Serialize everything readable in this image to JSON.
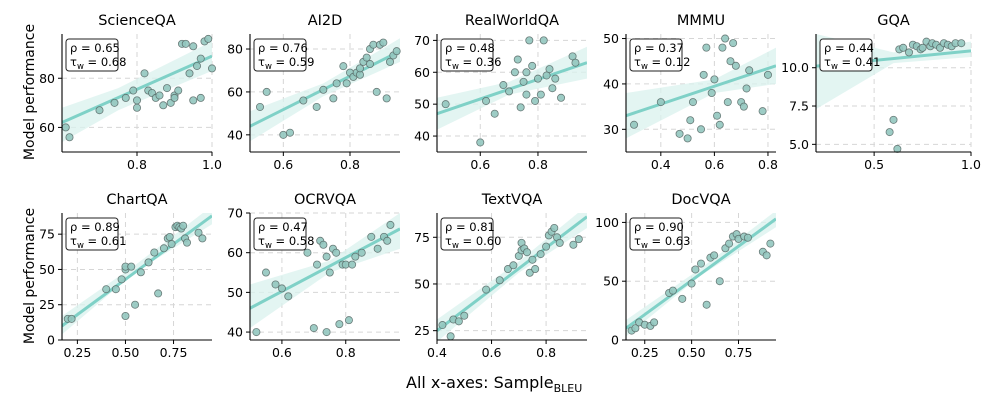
{
  "figure": {
    "ylabel": "Model performance",
    "xlabel_main": "All x-axes: Sample",
    "xlabel_sub": "BLEU",
    "stat_symbols": {
      "rho": "ρ",
      "tau": "τ",
      "tau_sub": "w"
    },
    "colors": {
      "fit": "#7fd1c7",
      "band": "#d9f1ee",
      "point": "#93c7bf",
      "point_edge": "#5a6e6b",
      "grid": "#d6d6d6"
    }
  },
  "chart_data": [
    {
      "type": "scatter",
      "title": "ScienceQA",
      "rho": "0.65",
      "tau": "0.68",
      "xlim": [
        0.6,
        1.0
      ],
      "ylim": [
        50,
        98
      ],
      "xticks": [
        0.8,
        1.0
      ],
      "xtick_labels": [
        "0.8",
        "1.0"
      ],
      "yticks": [
        60,
        80
      ],
      "ytick_labels": [
        "60",
        "80"
      ],
      "fit": [
        [
          0.6,
          62
        ],
        [
          1.0,
          89
        ]
      ],
      "band": [
        [
          0.6,
          54,
          68
        ],
        [
          0.75,
          67,
          76
        ],
        [
          1.0,
          83,
          95
        ]
      ],
      "points": [
        [
          0.61,
          60
        ],
        [
          0.62,
          56
        ],
        [
          0.7,
          67
        ],
        [
          0.74,
          70
        ],
        [
          0.77,
          72
        ],
        [
          0.79,
          75
        ],
        [
          0.8,
          68
        ],
        [
          0.8,
          71
        ],
        [
          0.82,
          82
        ],
        [
          0.83,
          75
        ],
        [
          0.84,
          74
        ],
        [
          0.85,
          72
        ],
        [
          0.86,
          73
        ],
        [
          0.87,
          69
        ],
        [
          0.88,
          76
        ],
        [
          0.89,
          70
        ],
        [
          0.9,
          73
        ],
        [
          0.9,
          72
        ],
        [
          0.91,
          75
        ],
        [
          0.92,
          94
        ],
        [
          0.93,
          94
        ],
        [
          0.94,
          82
        ],
        [
          0.95,
          93
        ],
        [
          0.95,
          71
        ],
        [
          0.96,
          85
        ],
        [
          0.97,
          72
        ],
        [
          0.97,
          88
        ],
        [
          0.98,
          95
        ],
        [
          0.99,
          96
        ],
        [
          1.0,
          84
        ]
      ]
    },
    {
      "type": "scatter",
      "title": "AI2D",
      "rho": "0.76",
      "tau": "0.59",
      "xlim": [
        0.5,
        0.95
      ],
      "ylim": [
        32,
        87
      ],
      "xticks": [
        0.6,
        0.8
      ],
      "xtick_labels": [
        "0.6",
        "0.8"
      ],
      "yticks": [
        40,
        60,
        80
      ],
      "ytick_labels": [
        "40",
        "60",
        "80"
      ],
      "fit": [
        [
          0.5,
          44
        ],
        [
          0.95,
          79
        ]
      ],
      "band": [
        [
          0.5,
          37,
          51
        ],
        [
          0.72,
          58,
          64
        ],
        [
          0.95,
          74,
          85
        ]
      ],
      "points": [
        [
          0.53,
          53
        ],
        [
          0.55,
          60
        ],
        [
          0.6,
          40
        ],
        [
          0.62,
          41
        ],
        [
          0.66,
          56
        ],
        [
          0.7,
          53
        ],
        [
          0.72,
          61
        ],
        [
          0.75,
          57
        ],
        [
          0.76,
          64
        ],
        [
          0.78,
          72
        ],
        [
          0.79,
          64
        ],
        [
          0.8,
          69
        ],
        [
          0.81,
          67
        ],
        [
          0.82,
          69
        ],
        [
          0.83,
          68
        ],
        [
          0.83,
          71
        ],
        [
          0.84,
          74
        ],
        [
          0.85,
          76
        ],
        [
          0.86,
          73
        ],
        [
          0.86,
          80
        ],
        [
          0.87,
          82
        ],
        [
          0.88,
          60
        ],
        [
          0.89,
          82
        ],
        [
          0.9,
          83
        ],
        [
          0.91,
          57
        ],
        [
          0.92,
          74
        ],
        [
          0.93,
          77
        ],
        [
          0.94,
          79
        ]
      ]
    },
    {
      "type": "scatter",
      "title": "RealWorldQA",
      "rho": "0.48",
      "tau": "0.36",
      "xlim": [
        0.45,
        0.97
      ],
      "ylim": [
        35,
        72
      ],
      "xticks": [
        0.6,
        0.8
      ],
      "xtick_labels": [
        "0.6",
        "0.8"
      ],
      "yticks": [
        40,
        50,
        60,
        70
      ],
      "ytick_labels": [
        "40",
        "50",
        "60",
        "70"
      ],
      "fit": [
        [
          0.45,
          47
        ],
        [
          0.97,
          63
        ]
      ],
      "band": [
        [
          0.45,
          42,
          52
        ],
        [
          0.7,
          53,
          57
        ],
        [
          0.97,
          58,
          68
        ]
      ],
      "points": [
        [
          0.48,
          50
        ],
        [
          0.6,
          38
        ],
        [
          0.62,
          51
        ],
        [
          0.65,
          47
        ],
        [
          0.68,
          56
        ],
        [
          0.7,
          54
        ],
        [
          0.72,
          60
        ],
        [
          0.73,
          64
        ],
        [
          0.74,
          49
        ],
        [
          0.75,
          57
        ],
        [
          0.76,
          53
        ],
        [
          0.76,
          60
        ],
        [
          0.77,
          70
        ],
        [
          0.78,
          62
        ],
        [
          0.79,
          51
        ],
        [
          0.8,
          58
        ],
        [
          0.81,
          53
        ],
        [
          0.82,
          70
        ],
        [
          0.83,
          59
        ],
        [
          0.84,
          61
        ],
        [
          0.85,
          55
        ],
        [
          0.86,
          58
        ],
        [
          0.88,
          52
        ],
        [
          0.92,
          65
        ],
        [
          0.93,
          63
        ]
      ]
    },
    {
      "type": "scatter",
      "title": "MMMU",
      "rho": "0.37",
      "tau": "0.12",
      "xlim": [
        0.27,
        0.83
      ],
      "ylim": [
        25,
        51
      ],
      "xticks": [
        0.4,
        0.6,
        0.8
      ],
      "xtick_labels": [
        "0.4",
        "0.6",
        "0.8"
      ],
      "yticks": [
        30,
        40,
        50
      ],
      "ytick_labels": [
        "30",
        "40",
        "50"
      ],
      "fit": [
        [
          0.27,
          33
        ],
        [
          0.83,
          44
        ]
      ],
      "band": [
        [
          0.27,
          28,
          38
        ],
        [
          0.6,
          38,
          41
        ],
        [
          0.83,
          40,
          48
        ]
      ],
      "points": [
        [
          0.3,
          31
        ],
        [
          0.4,
          36
        ],
        [
          0.47,
          29
        ],
        [
          0.5,
          28
        ],
        [
          0.51,
          32
        ],
        [
          0.52,
          36
        ],
        [
          0.55,
          30
        ],
        [
          0.56,
          42
        ],
        [
          0.57,
          48
        ],
        [
          0.59,
          38
        ],
        [
          0.6,
          41
        ],
        [
          0.61,
          33
        ],
        [
          0.62,
          31
        ],
        [
          0.63,
          48
        ],
        [
          0.64,
          50
        ],
        [
          0.65,
          36
        ],
        [
          0.66,
          45
        ],
        [
          0.67,
          49
        ],
        [
          0.68,
          44
        ],
        [
          0.7,
          36
        ],
        [
          0.71,
          35
        ],
        [
          0.72,
          39
        ],
        [
          0.73,
          43
        ],
        [
          0.78,
          34
        ],
        [
          0.8,
          42
        ]
      ]
    },
    {
      "type": "scatter",
      "title": "GQA",
      "rho": "0.44",
      "tau": "0.41",
      "xlim": [
        0.2,
        1.0
      ],
      "ylim": [
        4.5,
        12.2
      ],
      "xticks": [
        0.5,
        1.0
      ],
      "xtick_labels": [
        "0.5",
        "1.0"
      ],
      "yticks": [
        5.0,
        7.5,
        10.0
      ],
      "ytick_labels": [
        "5.0",
        "7.5",
        "10.0"
      ],
      "fit": [
        [
          0.2,
          10.1
        ],
        [
          1.0,
          11.1
        ]
      ],
      "band": [
        [
          0.2,
          7.3,
          12.2
        ],
        [
          0.6,
          10.3,
          11.0
        ],
        [
          1.0,
          10.7,
          11.7
        ]
      ],
      "points": [
        [
          0.58,
          5.8
        ],
        [
          0.6,
          6.6
        ],
        [
          0.62,
          4.7
        ],
        [
          0.63,
          11.2
        ],
        [
          0.65,
          11.3
        ],
        [
          0.68,
          11.0
        ],
        [
          0.7,
          11.5
        ],
        [
          0.72,
          11.4
        ],
        [
          0.74,
          11.2
        ],
        [
          0.75,
          11.3
        ],
        [
          0.77,
          11.7
        ],
        [
          0.79,
          11.4
        ],
        [
          0.8,
          11.6
        ],
        [
          0.82,
          11.5
        ],
        [
          0.84,
          11.3
        ],
        [
          0.86,
          11.6
        ],
        [
          0.88,
          11.5
        ],
        [
          0.9,
          11.4
        ],
        [
          0.92,
          11.6
        ],
        [
          0.95,
          11.6
        ]
      ]
    },
    {
      "type": "scatter",
      "title": "ChartQA",
      "rho": "0.89",
      "tau": "0.61",
      "xlim": [
        0.17,
        0.95
      ],
      "ylim": [
        0,
        90
      ],
      "xticks": [
        0.25,
        0.5,
        0.75
      ],
      "xtick_labels": [
        "0.25",
        "0.50",
        "0.75"
      ],
      "yticks": [
        0,
        25,
        50,
        75
      ],
      "ytick_labels": [
        "0",
        "25",
        "50",
        "75"
      ],
      "fit": [
        [
          0.17,
          10
        ],
        [
          0.95,
          88
        ]
      ],
      "band": [
        [
          0.17,
          4,
          17
        ],
        [
          0.55,
          48,
          53
        ],
        [
          0.95,
          82,
          95
        ]
      ],
      "points": [
        [
          0.2,
          15
        ],
        [
          0.22,
          15
        ],
        [
          0.4,
          36
        ],
        [
          0.45,
          36
        ],
        [
          0.48,
          43
        ],
        [
          0.5,
          50
        ],
        [
          0.5,
          52
        ],
        [
          0.5,
          17
        ],
        [
          0.53,
          52
        ],
        [
          0.55,
          25
        ],
        [
          0.58,
          48
        ],
        [
          0.62,
          55
        ],
        [
          0.65,
          62
        ],
        [
          0.67,
          33
        ],
        [
          0.7,
          65
        ],
        [
          0.72,
          72
        ],
        [
          0.73,
          73
        ],
        [
          0.74,
          68
        ],
        [
          0.76,
          80
        ],
        [
          0.77,
          81
        ],
        [
          0.78,
          80
        ],
        [
          0.79,
          79
        ],
        [
          0.8,
          81
        ],
        [
          0.81,
          72
        ],
        [
          0.82,
          69
        ],
        [
          0.88,
          76
        ],
        [
          0.9,
          72
        ]
      ]
    },
    {
      "type": "scatter",
      "title": "OCRVQA",
      "rho": "0.47",
      "tau": "0.58",
      "xlim": [
        0.5,
        0.97
      ],
      "ylim": [
        38,
        70
      ],
      "xticks": [
        0.6,
        0.8
      ],
      "xtick_labels": [
        "0.6",
        "0.8"
      ],
      "yticks": [
        40,
        50,
        60,
        70
      ],
      "ytick_labels": [
        "40",
        "50",
        "60",
        "70"
      ],
      "fit": [
        [
          0.5,
          46
        ],
        [
          0.97,
          66
        ]
      ],
      "band": [
        [
          0.5,
          41,
          52
        ],
        [
          0.75,
          55,
          58
        ],
        [
          0.97,
          61,
          70
        ]
      ],
      "points": [
        [
          0.52,
          40
        ],
        [
          0.55,
          55
        ],
        [
          0.58,
          52
        ],
        [
          0.6,
          51
        ],
        [
          0.62,
          49
        ],
        [
          0.68,
          60
        ],
        [
          0.7,
          41
        ],
        [
          0.71,
          57
        ],
        [
          0.72,
          63
        ],
        [
          0.73,
          62
        ],
        [
          0.74,
          59
        ],
        [
          0.74,
          40
        ],
        [
          0.75,
          55
        ],
        [
          0.76,
          61
        ],
        [
          0.77,
          60
        ],
        [
          0.78,
          42
        ],
        [
          0.79,
          57
        ],
        [
          0.8,
          57
        ],
        [
          0.81,
          43
        ],
        [
          0.82,
          57
        ],
        [
          0.83,
          59
        ],
        [
          0.85,
          60
        ],
        [
          0.88,
          64
        ],
        [
          0.9,
          61
        ],
        [
          0.92,
          64
        ],
        [
          0.93,
          63
        ],
        [
          0.94,
          67
        ]
      ]
    },
    {
      "type": "scatter",
      "title": "TextVQA",
      "rho": "0.81",
      "tau": "0.60",
      "xlim": [
        0.4,
        0.95
      ],
      "ylim": [
        20,
        88
      ],
      "xticks": [
        0.4,
        0.6,
        0.8
      ],
      "xtick_labels": [
        "0.4",
        "0.6",
        "0.8"
      ],
      "yticks": [
        25,
        50,
        75
      ],
      "ytick_labels": [
        "25",
        "50",
        "75"
      ],
      "fit": [
        [
          0.4,
          25
        ],
        [
          0.95,
          86
        ]
      ],
      "band": [
        [
          0.4,
          19,
          31
        ],
        [
          0.7,
          56,
          62
        ],
        [
          0.95,
          80,
          92
        ]
      ],
      "points": [
        [
          0.42,
          28
        ],
        [
          0.45,
          22
        ],
        [
          0.46,
          31
        ],
        [
          0.48,
          30
        ],
        [
          0.5,
          33
        ],
        [
          0.58,
          47
        ],
        [
          0.63,
          52
        ],
        [
          0.66,
          58
        ],
        [
          0.68,
          60
        ],
        [
          0.7,
          65
        ],
        [
          0.71,
          68
        ],
        [
          0.71,
          72
        ],
        [
          0.72,
          69
        ],
        [
          0.73,
          67
        ],
        [
          0.74,
          56
        ],
        [
          0.75,
          63
        ],
        [
          0.76,
          58
        ],
        [
          0.78,
          66
        ],
        [
          0.8,
          70
        ],
        [
          0.81,
          76
        ],
        [
          0.82,
          78
        ],
        [
          0.83,
          80
        ],
        [
          0.84,
          75
        ],
        [
          0.85,
          72
        ],
        [
          0.9,
          71
        ],
        [
          0.92,
          74
        ]
      ]
    },
    {
      "type": "scatter",
      "title": "DocVQA",
      "rho": "0.90",
      "tau": "0.63",
      "xlim": [
        0.15,
        0.95
      ],
      "ylim": [
        0,
        108
      ],
      "xticks": [
        0.25,
        0.5,
        0.75
      ],
      "xtick_labels": [
        "0.25",
        "0.50",
        "0.75"
      ],
      "yticks": [
        0,
        50,
        100
      ],
      "ytick_labels": [
        "0",
        "50",
        "100"
      ],
      "fit": [
        [
          0.15,
          10
        ],
        [
          0.95,
          103
        ]
      ],
      "band": [
        [
          0.15,
          3,
          17
        ],
        [
          0.55,
          55,
          61
        ],
        [
          0.95,
          96,
          110
        ]
      ],
      "points": [
        [
          0.18,
          8
        ],
        [
          0.2,
          10
        ],
        [
          0.22,
          15
        ],
        [
          0.25,
          13
        ],
        [
          0.28,
          12
        ],
        [
          0.3,
          15
        ],
        [
          0.38,
          40
        ],
        [
          0.4,
          42
        ],
        [
          0.45,
          35
        ],
        [
          0.5,
          48
        ],
        [
          0.52,
          60
        ],
        [
          0.55,
          65
        ],
        [
          0.58,
          30
        ],
        [
          0.6,
          70
        ],
        [
          0.62,
          72
        ],
        [
          0.65,
          50
        ],
        [
          0.68,
          78
        ],
        [
          0.7,
          82
        ],
        [
          0.72,
          88
        ],
        [
          0.74,
          90
        ],
        [
          0.75,
          86
        ],
        [
          0.78,
          88
        ],
        [
          0.8,
          87
        ],
        [
          0.88,
          75
        ],
        [
          0.9,
          72
        ],
        [
          0.92,
          82
        ]
      ]
    }
  ]
}
